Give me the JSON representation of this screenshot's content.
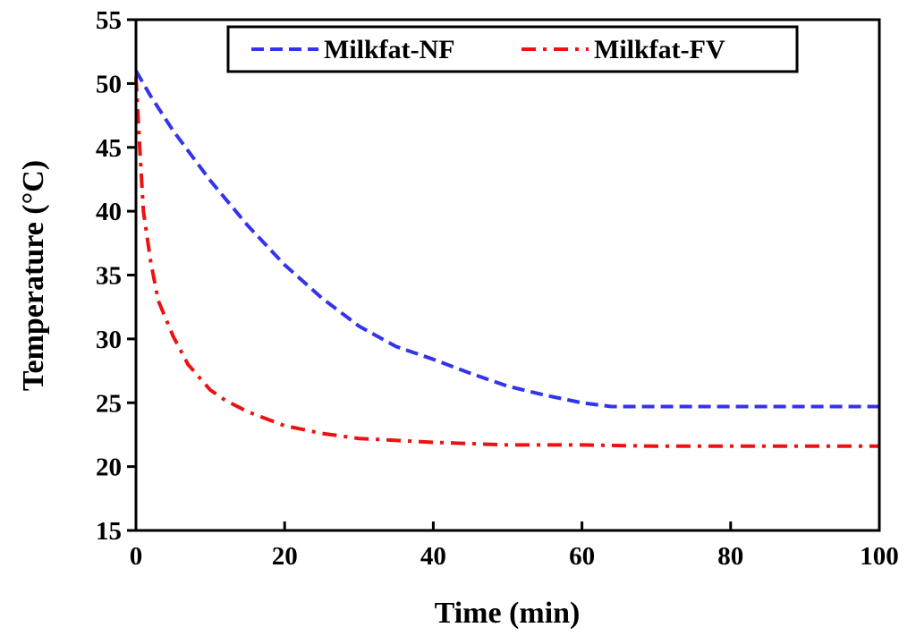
{
  "chart_data": {
    "type": "line",
    "title": "",
    "xlabel": "Time (min)",
    "ylabel": "Temperature (°C)",
    "xlim": [
      0,
      100
    ],
    "ylim": [
      15,
      55
    ],
    "xticks": [
      0,
      20,
      40,
      60,
      80,
      100
    ],
    "yticks": [
      15,
      20,
      25,
      30,
      35,
      40,
      45,
      50,
      55
    ],
    "grid": false,
    "legend_position": "top",
    "series": [
      {
        "name": "Milkfat-NF",
        "color": "#3333ee",
        "line_style": "dashed",
        "x": [
          0,
          2,
          5,
          10,
          15,
          20,
          25,
          30,
          35,
          40,
          45,
          50,
          55,
          60,
          64,
          70,
          80,
          90,
          100
        ],
        "y": [
          51.0,
          49.0,
          46.3,
          42.4,
          38.9,
          35.8,
          33.2,
          31.0,
          29.4,
          28.4,
          27.3,
          26.3,
          25.6,
          25.0,
          24.7,
          24.7,
          24.7,
          24.7,
          24.7
        ]
      },
      {
        "name": "Milkfat-FV",
        "color": "#ee1111",
        "line_style": "dash-dot",
        "x": [
          0,
          0.5,
          1,
          2,
          3,
          5,
          7,
          10,
          12,
          15,
          20,
          25,
          30,
          40,
          50,
          60,
          70,
          80,
          90,
          100
        ],
        "y": [
          50.5,
          45.0,
          40.0,
          36.0,
          33.0,
          30.2,
          28.0,
          26.0,
          25.2,
          24.3,
          23.2,
          22.6,
          22.2,
          21.9,
          21.7,
          21.7,
          21.6,
          21.6,
          21.6,
          21.6
        ]
      }
    ]
  }
}
